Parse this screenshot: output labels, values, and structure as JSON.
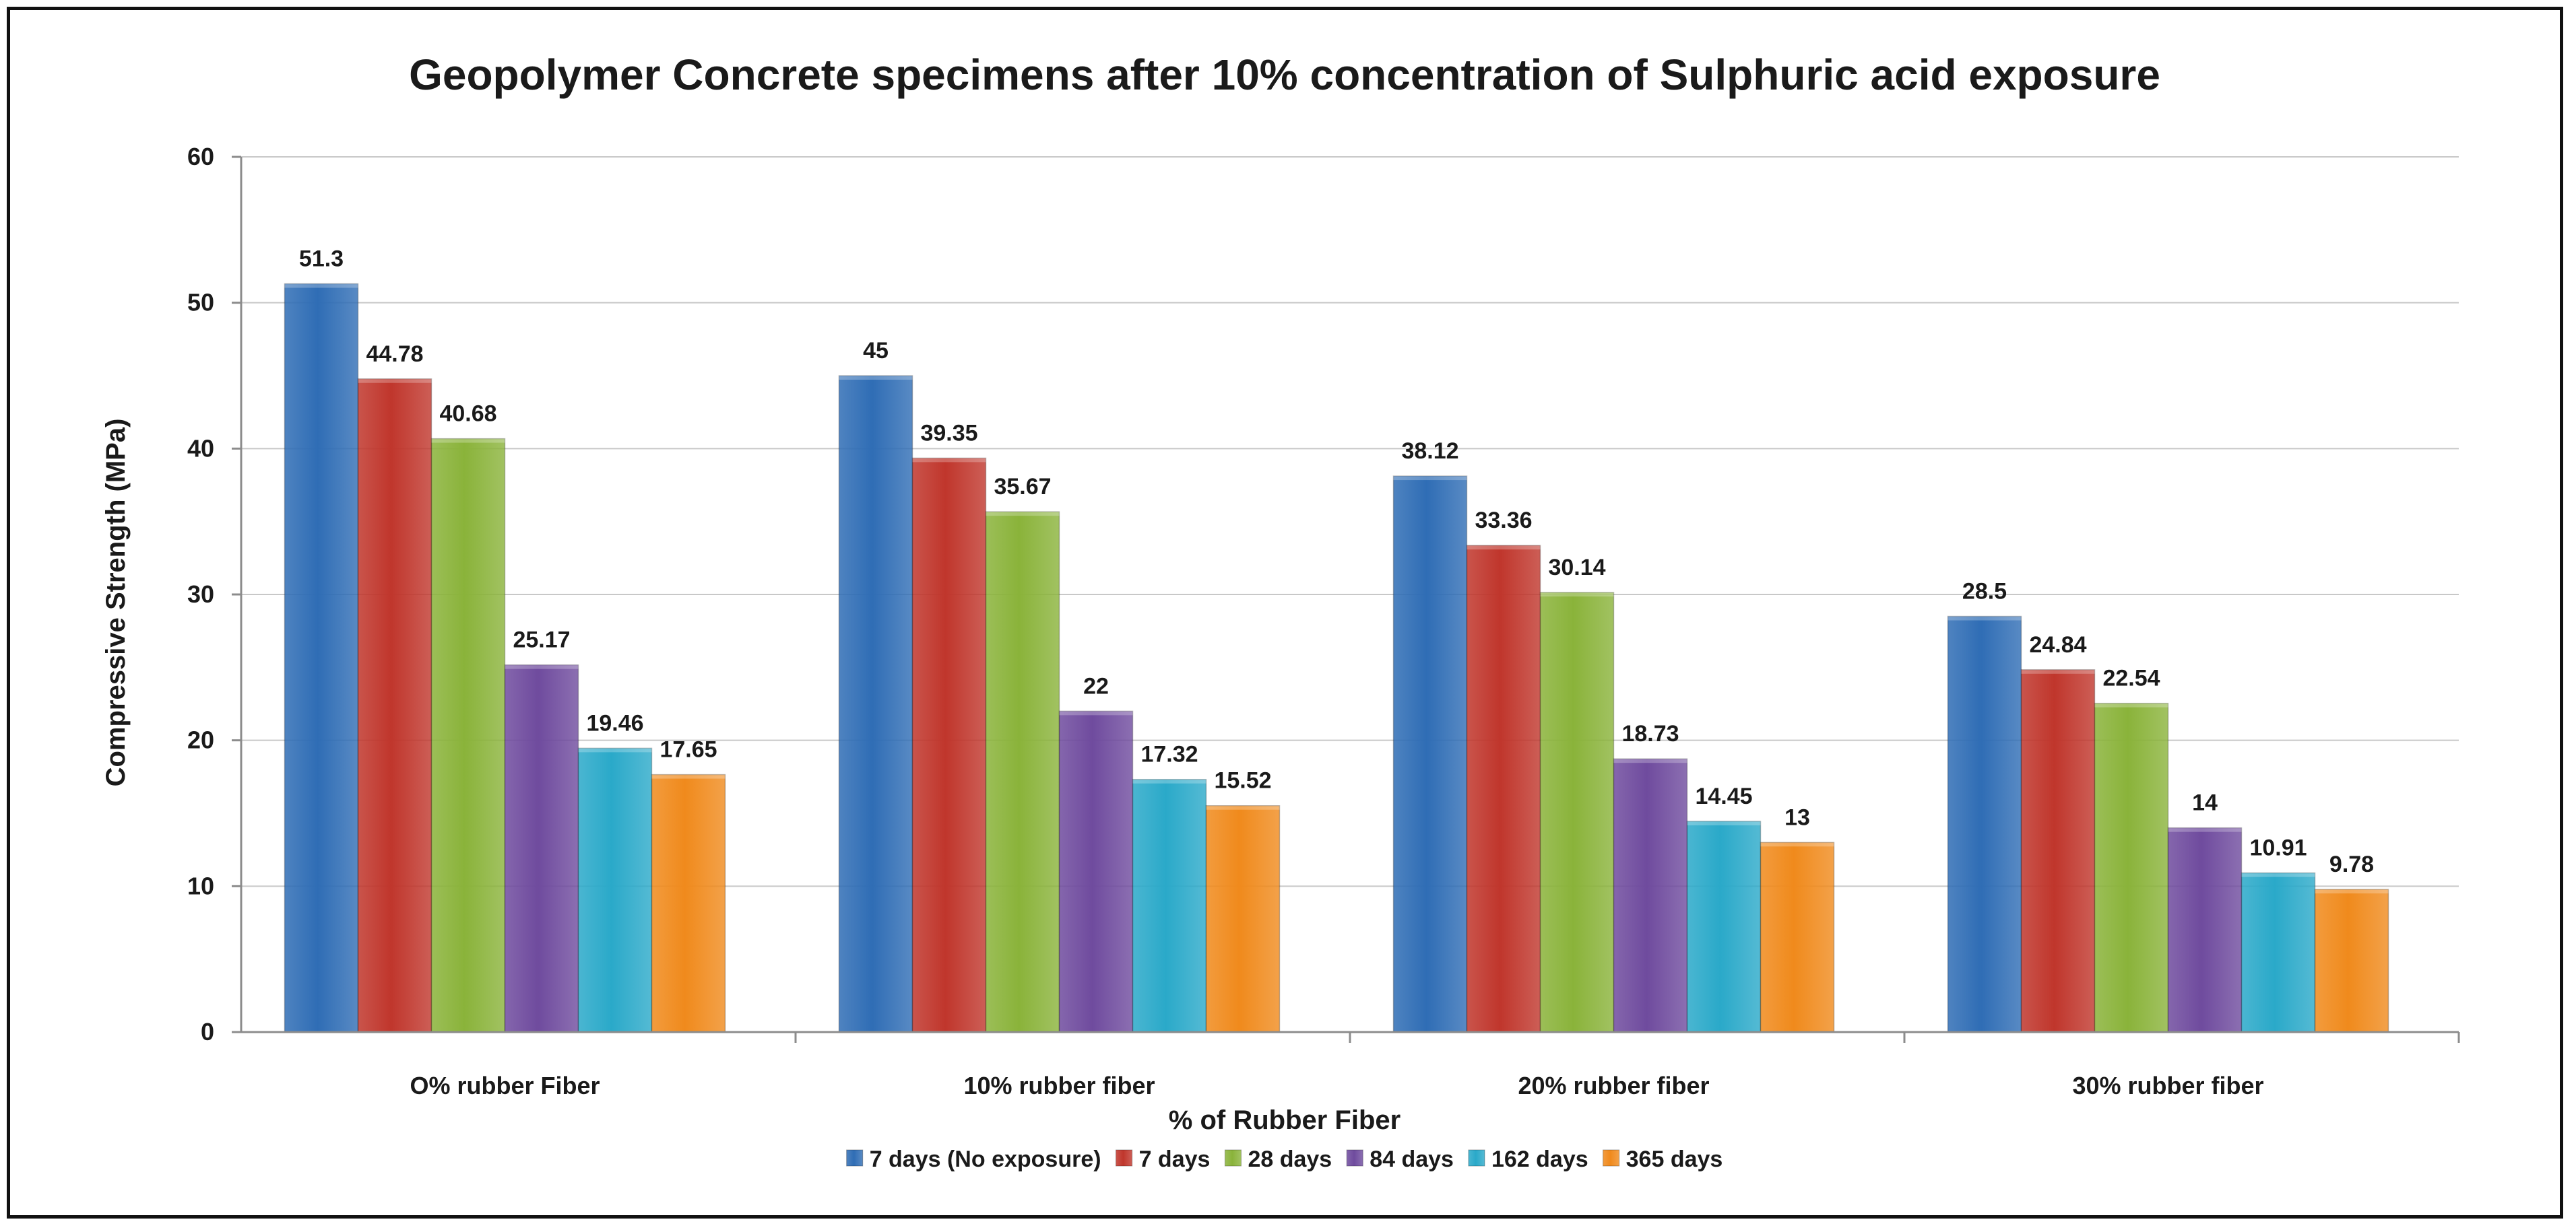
{
  "chart_data": {
    "type": "bar",
    "title": "Geopolymer Concrete specimens after 10% concentration of Sulphuric acid exposure",
    "xlabel": "% of Rubber Fiber",
    "ylabel": "Compressive Strength  (MPa)",
    "ylim": [
      0,
      60
    ],
    "yticks": [
      "0",
      "10",
      "20",
      "30",
      "40",
      "50",
      "60"
    ],
    "grid": true,
    "legend_position": "bottom",
    "categories": [
      "O% rubber Fiber",
      "10% rubber fiber",
      "20% rubber fiber",
      "30% rubber fiber"
    ],
    "series": [
      {
        "name": "7 days (No exposure)",
        "color": "#2f6db5",
        "values": [
          51.3,
          45,
          38.12,
          28.5
        ],
        "labels": [
          "51.3",
          "45",
          "38.12",
          "28.5"
        ]
      },
      {
        "name": "7 days",
        "color": "#c0362c",
        "values": [
          44.78,
          39.35,
          33.36,
          24.84
        ],
        "labels": [
          "44.78",
          "39.35",
          "33.36",
          "24.84"
        ]
      },
      {
        "name": "28 days",
        "color": "#8ab33a",
        "values": [
          40.68,
          35.67,
          30.14,
          22.54
        ],
        "labels": [
          "40.68",
          "35.67",
          "30.14",
          "22.54"
        ]
      },
      {
        "name": "84 days",
        "color": "#6f4b9e",
        "values": [
          25.17,
          22,
          18.73,
          14
        ],
        "labels": [
          "25.17",
          "22",
          "18.73",
          "14"
        ]
      },
      {
        "name": "162 days",
        "color": "#2aa9c9",
        "values": [
          19.46,
          17.32,
          14.45,
          10.91
        ],
        "labels": [
          "19.46",
          "17.32",
          "14.45",
          "10.91"
        ]
      },
      {
        "name": "365 days",
        "color": "#f08a1c",
        "values": [
          17.65,
          15.52,
          13,
          9.78
        ],
        "labels": [
          "17.65",
          "15.52",
          "13",
          "9.78"
        ]
      }
    ]
  }
}
